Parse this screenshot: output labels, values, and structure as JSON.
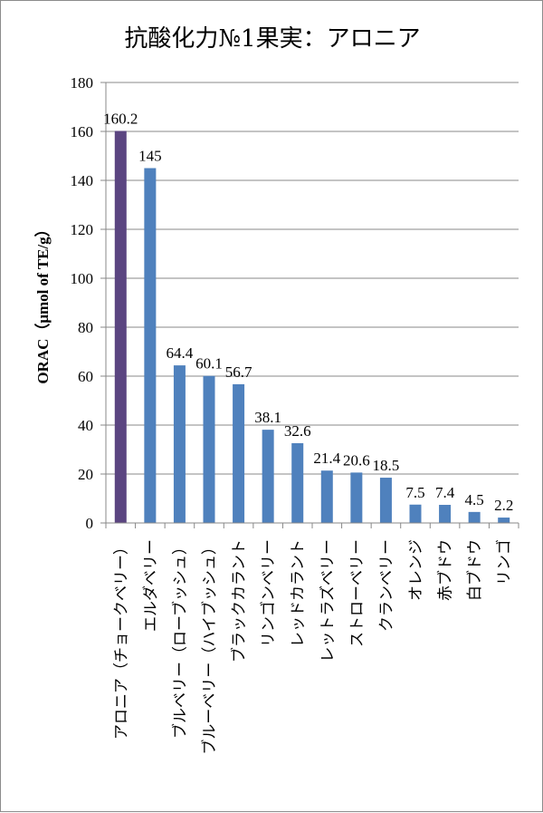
{
  "chart_data": {
    "type": "bar",
    "title": "抗酸化力№1果実：アロニア",
    "ylabel": "ORAC（μmol of TE/g）",
    "xlabel": "",
    "ylim": [
      0,
      180
    ],
    "yticks": [
      0,
      20,
      40,
      60,
      80,
      100,
      120,
      140,
      160,
      180
    ],
    "grid": "horizontal",
    "categories": [
      "アロニア（チョークベリー）",
      "エルダベリー",
      "ブルベリー（ローブッシュ）",
      "ブルーベリー（ハイブッシュ）",
      "ブラックカラント",
      "リンゴンベリー",
      "レッドカラント",
      "レットラズベリー",
      "ストローベリー",
      "クランベリー",
      "オレンジ",
      "赤ブドウ",
      "白ブドウ",
      "リンゴ"
    ],
    "values": [
      160.2,
      145,
      64.4,
      60.1,
      56.7,
      38.1,
      32.6,
      21.4,
      20.6,
      18.5,
      7.5,
      7.4,
      4.5,
      2.2
    ],
    "data_labels": [
      "160.2",
      "145",
      "64.4",
      "60.1",
      "56.7",
      "38.1",
      "32.6",
      "21.4",
      "20.6",
      "18.5",
      "7.5",
      "7.4",
      "4.5",
      "2.2"
    ],
    "colors": {
      "highlight": "#5b4581",
      "bar": "#4f81bd",
      "grid": "#888888",
      "axis": "#888888"
    }
  }
}
